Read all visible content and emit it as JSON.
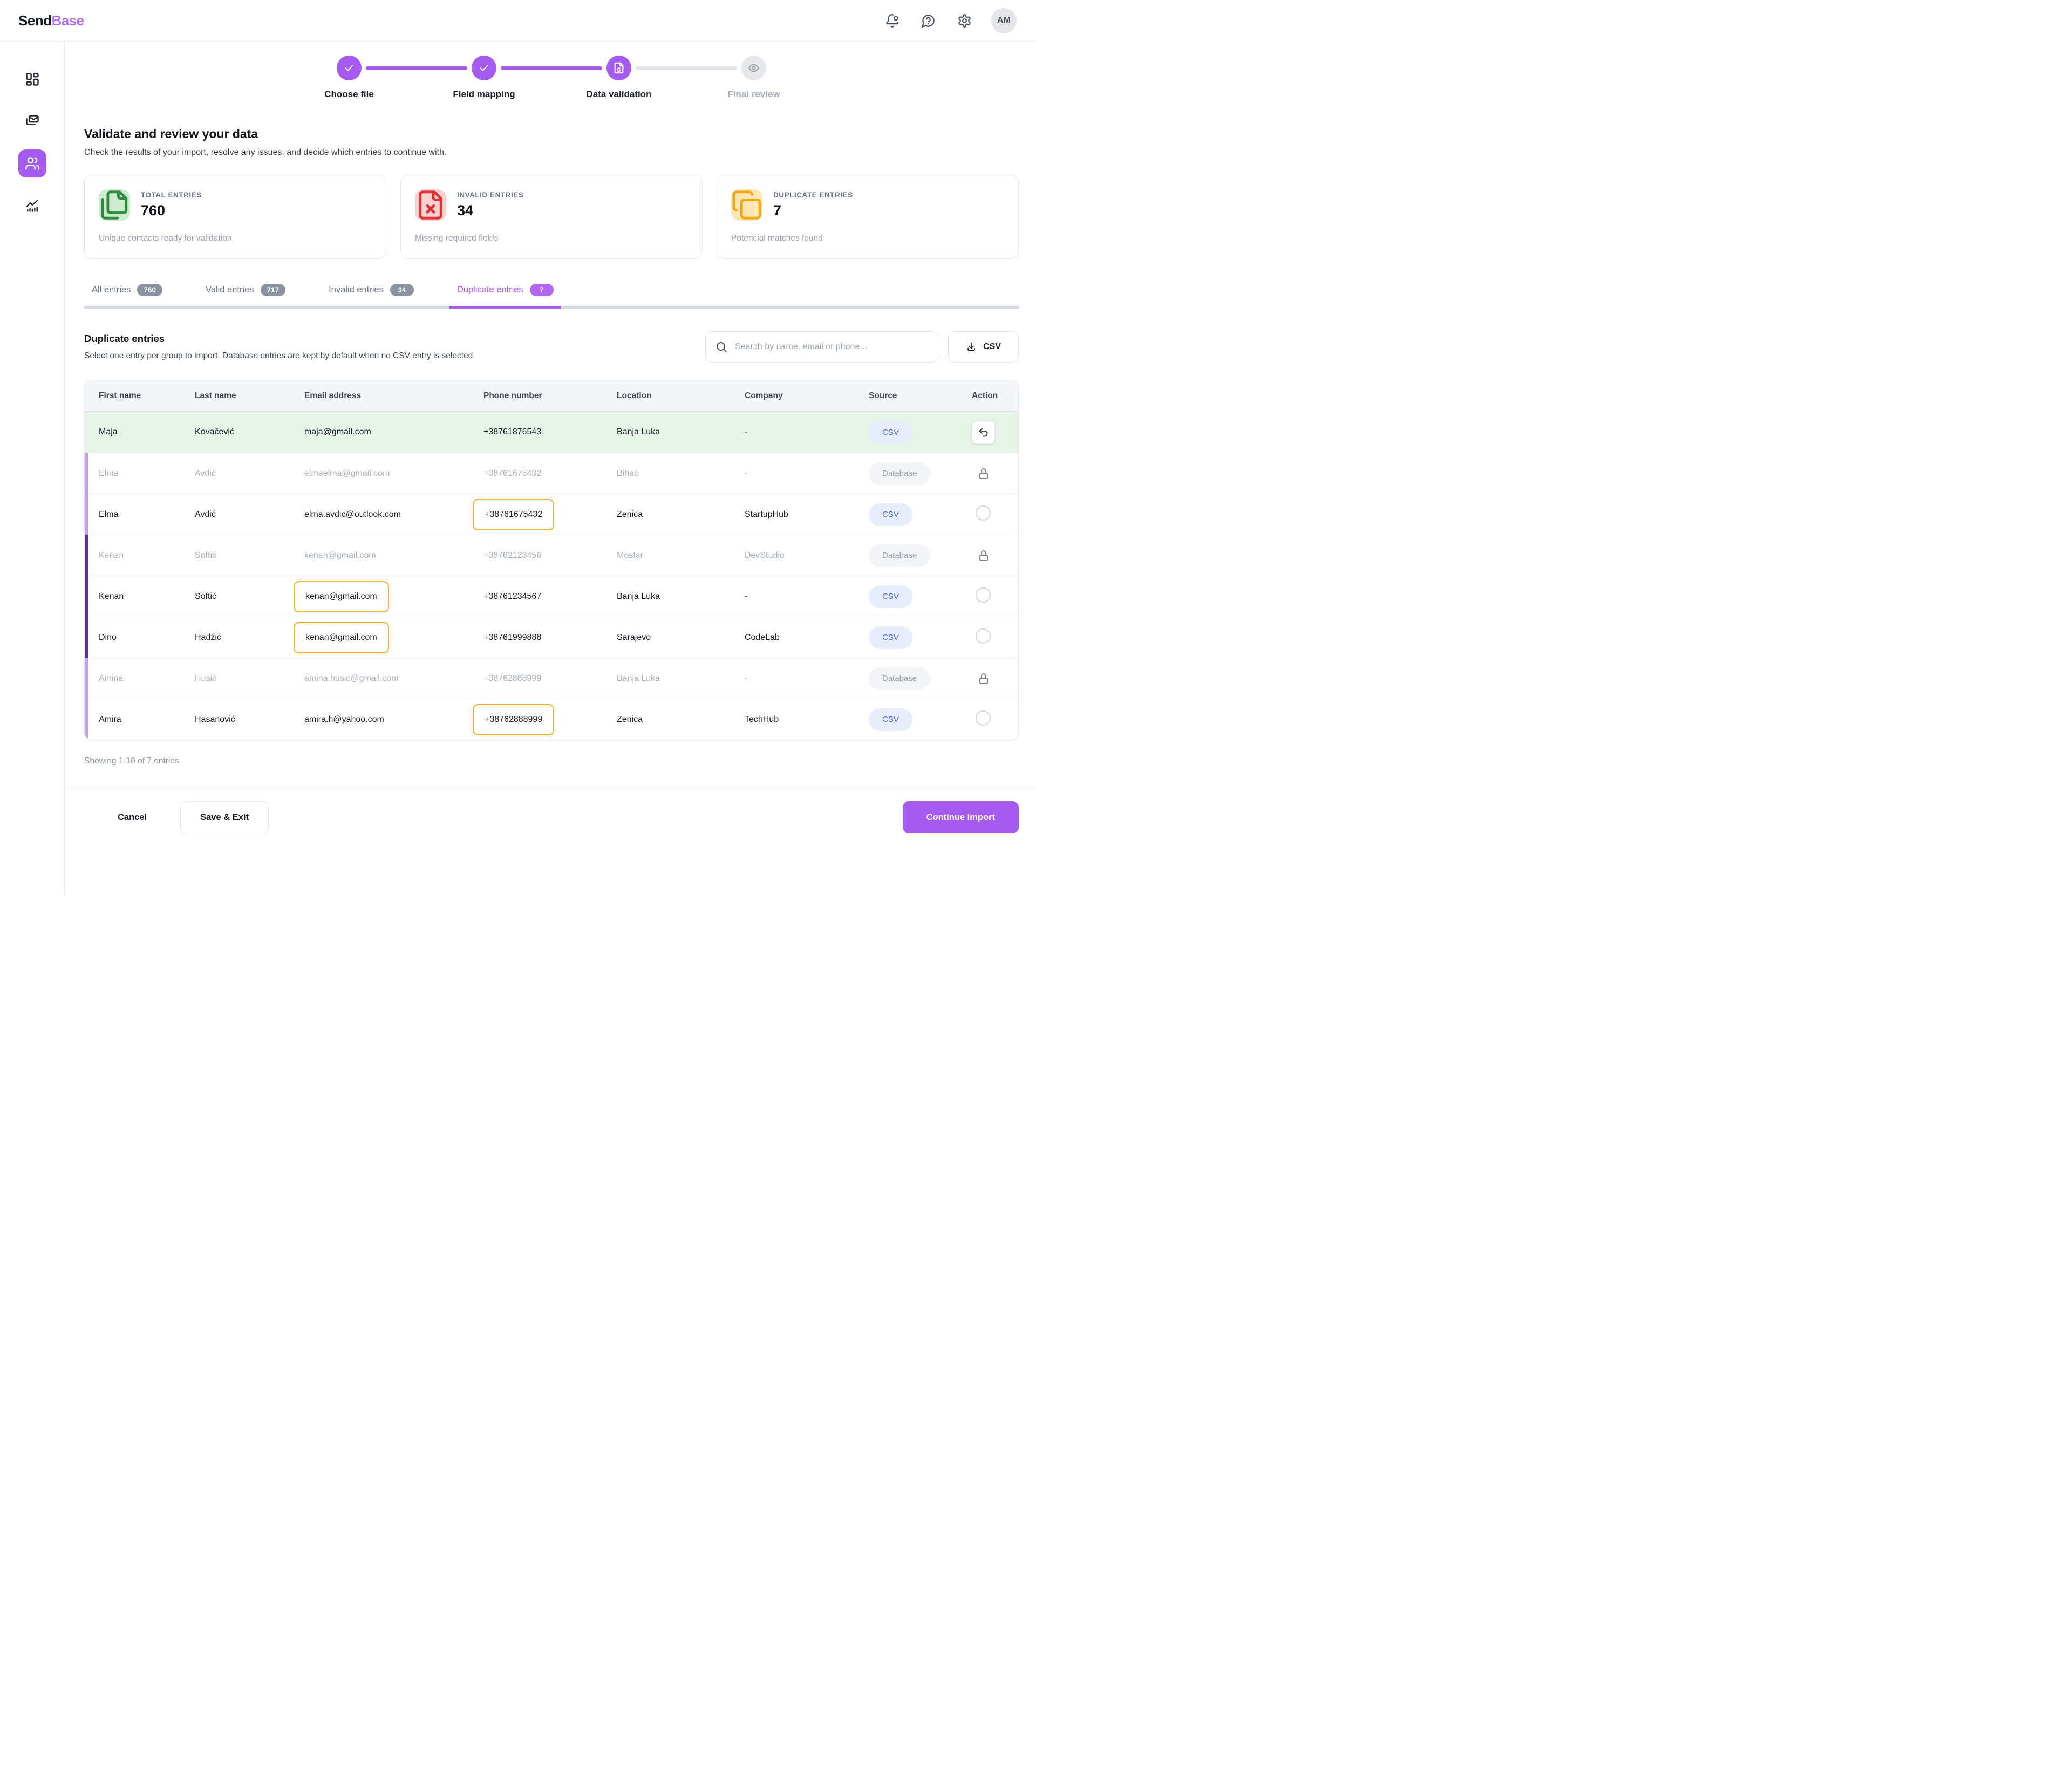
{
  "brand": {
    "name_primary": "Send",
    "name_accent": "Base",
    "accent_color": "#b06cf4"
  },
  "header": {
    "avatar_initials": "AM"
  },
  "sidebar": {
    "items": [
      {
        "id": "dashboard",
        "icon": "layout-dashboard",
        "active": false
      },
      {
        "id": "campaigns",
        "icon": "mails",
        "active": false
      },
      {
        "id": "contacts",
        "icon": "users",
        "active": true
      },
      {
        "id": "analytics",
        "icon": "chart",
        "active": false
      }
    ]
  },
  "stepper": {
    "steps": [
      {
        "label": "Choose file",
        "state": "completed",
        "icon": "check"
      },
      {
        "label": "Field mapping",
        "state": "completed",
        "icon": "check"
      },
      {
        "label": "Data validation",
        "state": "current",
        "icon": "file-sync"
      },
      {
        "label": "Final review",
        "state": "upcoming",
        "icon": "eye"
      }
    ]
  },
  "page": {
    "title": "Validate and review your data",
    "subtitle": "Check the results of your import, resolve any issues, and decide which entries to continue with."
  },
  "stats": [
    {
      "label": "TOTAL ENTRIES",
      "value": "760",
      "description": "Unique contacts ready for validation",
      "icon": "files",
      "icon_color": "#2e8b3d",
      "icon_bg": "#cdeccd"
    },
    {
      "label": "INVALID ENTRIES",
      "value": "34",
      "description": "Missing required fields",
      "icon": "file-x",
      "icon_color": "#dc2f2f",
      "icon_bg": "#fbd2d2"
    },
    {
      "label": "DUPLICATE ENTRIES",
      "value": "7",
      "description": "Potencial matches found",
      "icon": "copy",
      "icon_color": "#f2a818",
      "icon_bg": "#fce8b3"
    }
  ],
  "tabs": [
    {
      "id": "all",
      "label": "All entries",
      "count": "760",
      "active": false
    },
    {
      "id": "valid",
      "label": "Valid entries",
      "count": "717",
      "active": false
    },
    {
      "id": "invalid",
      "label": "Invalid entries",
      "count": "34",
      "active": false
    },
    {
      "id": "duplicate",
      "label": "Duplicate entries",
      "count": "7",
      "active": true
    }
  ],
  "section": {
    "title": "Duplicate entries",
    "subtitle": "Select one entry per group to import. Database entries are kept by default when no CSV entry is selected.",
    "search_placeholder": "Search by name, email or phone...",
    "csv_button_label": "CSV"
  },
  "table": {
    "columns": [
      "First name",
      "Last name",
      "Email address",
      "Phone number",
      "Location",
      "Company",
      "Source",
      "Action"
    ],
    "rows": [
      {
        "first": "Maja",
        "last": "Kovačević",
        "email": "maja@gmail.com",
        "phone": "+38761876543",
        "location": "Banja Luka",
        "company": "-",
        "source": "CSV",
        "action": "undo",
        "state": "selected",
        "group": "none",
        "email_flag": false,
        "phone_flag": false
      },
      {
        "first": "Elma",
        "last": "Avdić",
        "email": "elmaelma@gmail.com",
        "phone": "+38761675432",
        "location": "Bihać",
        "company": "-",
        "source": "Database",
        "action": "lock",
        "state": "muted",
        "group": "a",
        "email_flag": false,
        "phone_flag": false
      },
      {
        "first": "Elma",
        "last": "Avdić",
        "email": "elma.avdic@outlook.com",
        "phone": "+38761675432",
        "location": "Zenica",
        "company": "StartupHub",
        "source": "CSV",
        "action": "radio",
        "state": "normal",
        "group": "a",
        "email_flag": false,
        "phone_flag": true
      },
      {
        "first": "Kenan",
        "last": "Softić",
        "email": "kenan@gmail.com",
        "phone": "+38762123456",
        "location": "Mostar",
        "company": "DevStudio",
        "source": "Database",
        "action": "lock",
        "state": "muted",
        "group": "b",
        "email_flag": false,
        "phone_flag": false
      },
      {
        "first": "Kenan",
        "last": "Softić",
        "email": "kenan@gmail.com",
        "phone": "+38761234567",
        "location": "Banja Luka",
        "company": "-",
        "source": "CSV",
        "action": "radio",
        "state": "normal",
        "group": "b",
        "email_flag": true,
        "phone_flag": false
      },
      {
        "first": "Dino",
        "last": "Hadžić",
        "email": "kenan@gmail.com",
        "phone": "+38761999888",
        "location": "Sarajevo",
        "company": "CodeLab",
        "source": "CSV",
        "action": "radio",
        "state": "normal",
        "group": "b",
        "email_flag": true,
        "phone_flag": false
      },
      {
        "first": "Amina",
        "last": "Husić",
        "email": "amina.husic@gmail.com",
        "phone": "+38762888999",
        "location": "Banja Luka",
        "company": "-",
        "source": "Database",
        "action": "lock",
        "state": "muted",
        "group": "c",
        "email_flag": false,
        "phone_flag": false
      },
      {
        "first": "Amira",
        "last": "Hasanović",
        "email": "amira.h@yahoo.com",
        "phone": "+38762888999",
        "location": "Zenica",
        "company": "TechHub",
        "source": "CSV",
        "action": "radio",
        "state": "normal",
        "group": "c",
        "email_flag": false,
        "phone_flag": true
      }
    ],
    "footer_text": "Showing 1-10 of 7 entries"
  },
  "footer": {
    "cancel_label": "Cancel",
    "save_exit_label": "Save & Exit",
    "continue_label": "Continue import"
  }
}
